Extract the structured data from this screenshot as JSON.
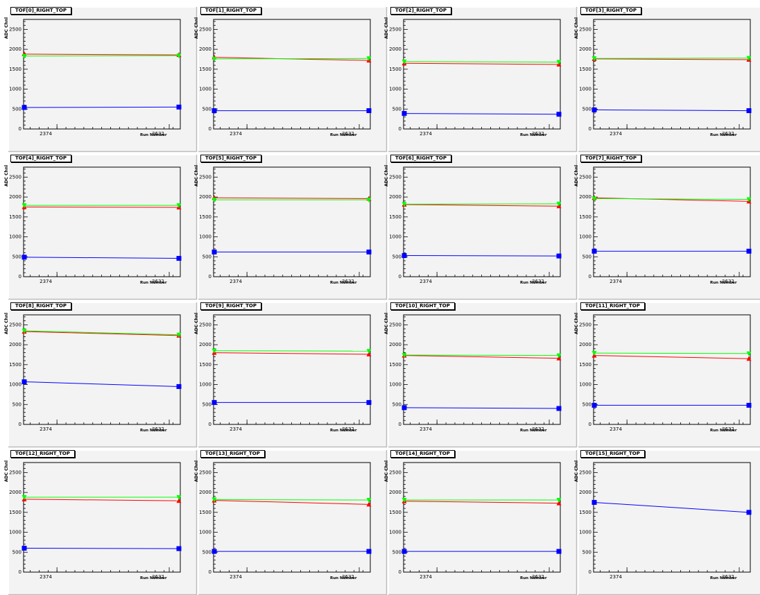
{
  "colors": {
    "pad_bg": "#f3f3f3",
    "frame": "#000000",
    "series_red": "#ff0000",
    "series_green": "#00ff00",
    "series_blue": "#0000ff"
  },
  "axis": {
    "x_ticks": [
      "2374",
      "3632"
    ],
    "y_ticks": [
      "0",
      "500",
      "1000",
      "1500",
      "2000",
      "2500"
    ],
    "xlabel": "Run Number",
    "ylabel": "ADC Chnl"
  },
  "chart_data": [
    {
      "type": "line",
      "title": "TOF[0]_RIGHT_TOP",
      "x": [
        2374,
        3632
      ],
      "ylim": [
        0,
        2750
      ],
      "series": [
        {
          "color": "#ff0000",
          "marker": "triangle-up",
          "values": [
            1880,
            1860
          ]
        },
        {
          "color": "#00ff00",
          "marker": "triangle-down",
          "values": [
            1830,
            1840
          ]
        },
        {
          "color": "#0000ff",
          "marker": "square",
          "values": [
            540,
            550
          ]
        }
      ]
    },
    {
      "type": "line",
      "title": "TOF[1]_RIGHT_TOP",
      "x": [
        2374,
        3632
      ],
      "ylim": [
        0,
        2750
      ],
      "series": [
        {
          "color": "#ff0000",
          "marker": "triangle-up",
          "values": [
            1800,
            1720
          ]
        },
        {
          "color": "#00ff00",
          "marker": "triangle-down",
          "values": [
            1760,
            1770
          ]
        },
        {
          "color": "#0000ff",
          "marker": "square",
          "values": [
            460,
            460
          ]
        }
      ]
    },
    {
      "type": "line",
      "title": "TOF[2]_RIGHT_TOP",
      "x": [
        2374,
        3632
      ],
      "ylim": [
        0,
        2750
      ],
      "series": [
        {
          "color": "#ff0000",
          "marker": "triangle-up",
          "values": [
            1650,
            1620
          ]
        },
        {
          "color": "#00ff00",
          "marker": "triangle-down",
          "values": [
            1690,
            1680
          ]
        },
        {
          "color": "#0000ff",
          "marker": "square",
          "values": [
            390,
            370
          ]
        }
      ]
    },
    {
      "type": "line",
      "title": "TOF[3]_RIGHT_TOP",
      "x": [
        2374,
        3632
      ],
      "ylim": [
        0,
        2750
      ],
      "series": [
        {
          "color": "#ff0000",
          "marker": "triangle-up",
          "values": [
            1760,
            1740
          ]
        },
        {
          "color": "#00ff00",
          "marker": "triangle-down",
          "values": [
            1770,
            1780
          ]
        },
        {
          "color": "#0000ff",
          "marker": "square",
          "values": [
            480,
            460
          ]
        }
      ]
    },
    {
      "type": "line",
      "title": "TOF[4]_RIGHT_TOP",
      "x": [
        2374,
        3632
      ],
      "ylim": [
        0,
        2750
      ],
      "series": [
        {
          "color": "#ff0000",
          "marker": "triangle-up",
          "values": [
            1750,
            1740
          ]
        },
        {
          "color": "#00ff00",
          "marker": "triangle-down",
          "values": [
            1790,
            1790
          ]
        },
        {
          "color": "#0000ff",
          "marker": "square",
          "values": [
            490,
            460
          ]
        }
      ]
    },
    {
      "type": "line",
      "title": "TOF[5]_RIGHT_TOP",
      "x": [
        2374,
        3632
      ],
      "ylim": [
        0,
        2750
      ],
      "series": [
        {
          "color": "#ff0000",
          "marker": "triangle-up",
          "values": [
            1980,
            1960
          ]
        },
        {
          "color": "#00ff00",
          "marker": "triangle-down",
          "values": [
            1930,
            1930
          ]
        },
        {
          "color": "#0000ff",
          "marker": "square",
          "values": [
            620,
            620
          ]
        }
      ]
    },
    {
      "type": "line",
      "title": "TOF[6]_RIGHT_TOP",
      "x": [
        2374,
        3632
      ],
      "ylim": [
        0,
        2750
      ],
      "series": [
        {
          "color": "#ff0000",
          "marker": "triangle-up",
          "values": [
            1810,
            1770
          ]
        },
        {
          "color": "#00ff00",
          "marker": "triangle-down",
          "values": [
            1820,
            1830
          ]
        },
        {
          "color": "#0000ff",
          "marker": "square",
          "values": [
            530,
            520
          ]
        }
      ]
    },
    {
      "type": "line",
      "title": "TOF[7]_RIGHT_TOP",
      "x": [
        2374,
        3632
      ],
      "ylim": [
        0,
        2750
      ],
      "series": [
        {
          "color": "#ff0000",
          "marker": "triangle-up",
          "values": [
            1980,
            1890
          ]
        },
        {
          "color": "#00ff00",
          "marker": "triangle-down",
          "values": [
            1960,
            1940
          ]
        },
        {
          "color": "#0000ff",
          "marker": "square",
          "values": [
            640,
            640
          ]
        }
      ]
    },
    {
      "type": "line",
      "title": "TOF[8]_RIGHT_TOP",
      "x": [
        2374,
        3632
      ],
      "ylim": [
        0,
        2750
      ],
      "series": [
        {
          "color": "#ff0000",
          "marker": "triangle-up",
          "values": [
            2330,
            2230
          ]
        },
        {
          "color": "#00ff00",
          "marker": "triangle-down",
          "values": [
            2350,
            2250
          ]
        },
        {
          "color": "#0000ff",
          "marker": "square",
          "values": [
            1070,
            950
          ]
        }
      ]
    },
    {
      "type": "line",
      "title": "TOF[9]_RIGHT_TOP",
      "x": [
        2374,
        3632
      ],
      "ylim": [
        0,
        2750
      ],
      "series": [
        {
          "color": "#ff0000",
          "marker": "triangle-up",
          "values": [
            1800,
            1760
          ]
        },
        {
          "color": "#00ff00",
          "marker": "triangle-down",
          "values": [
            1850,
            1840
          ]
        },
        {
          "color": "#0000ff",
          "marker": "square",
          "values": [
            550,
            550
          ]
        }
      ]
    },
    {
      "type": "line",
      "title": "TOF[10]_RIGHT_TOP",
      "x": [
        2374,
        3632
      ],
      "ylim": [
        0,
        2750
      ],
      "series": [
        {
          "color": "#ff0000",
          "marker": "triangle-up",
          "values": [
            1730,
            1660
          ]
        },
        {
          "color": "#00ff00",
          "marker": "triangle-down",
          "values": [
            1740,
            1730
          ]
        },
        {
          "color": "#0000ff",
          "marker": "square",
          "values": [
            420,
            400
          ]
        }
      ]
    },
    {
      "type": "line",
      "title": "TOF[11]_RIGHT_TOP",
      "x": [
        2374,
        3632
      ],
      "ylim": [
        0,
        2750
      ],
      "series": [
        {
          "color": "#ff0000",
          "marker": "triangle-up",
          "values": [
            1730,
            1650
          ]
        },
        {
          "color": "#00ff00",
          "marker": "triangle-down",
          "values": [
            1790,
            1780
          ]
        },
        {
          "color": "#0000ff",
          "marker": "square",
          "values": [
            480,
            480
          ]
        }
      ]
    },
    {
      "type": "line",
      "title": "TOF[12]_RIGHT_TOP",
      "x": [
        2374,
        3632
      ],
      "ylim": [
        0,
        2750
      ],
      "series": [
        {
          "color": "#ff0000",
          "marker": "triangle-up",
          "values": [
            1830,
            1790
          ]
        },
        {
          "color": "#00ff00",
          "marker": "triangle-down",
          "values": [
            1880,
            1880
          ]
        },
        {
          "color": "#0000ff",
          "marker": "square",
          "values": [
            600,
            590
          ]
        }
      ]
    },
    {
      "type": "line",
      "title": "TOF[13]_RIGHT_TOP",
      "x": [
        2374,
        3632
      ],
      "ylim": [
        0,
        2750
      ],
      "series": [
        {
          "color": "#ff0000",
          "marker": "triangle-up",
          "values": [
            1800,
            1700
          ]
        },
        {
          "color": "#00ff00",
          "marker": "triangle-down",
          "values": [
            1820,
            1810
          ]
        },
        {
          "color": "#0000ff",
          "marker": "square",
          "values": [
            520,
            520
          ]
        }
      ]
    },
    {
      "type": "line",
      "title": "TOF[14]_RIGHT_TOP",
      "x": [
        2374,
        3632
      ],
      "ylim": [
        0,
        2750
      ],
      "series": [
        {
          "color": "#ff0000",
          "marker": "triangle-up",
          "values": [
            1780,
            1730
          ]
        },
        {
          "color": "#00ff00",
          "marker": "triangle-down",
          "values": [
            1810,
            1810
          ]
        },
        {
          "color": "#0000ff",
          "marker": "square",
          "values": [
            520,
            520
          ]
        }
      ]
    },
    {
      "type": "line",
      "title": "TOF[15]_RIGHT_TOP",
      "x": [
        2374,
        3632
      ],
      "ylim": [
        0,
        2750
      ],
      "series": [
        {
          "color": "#0000ff",
          "marker": "square",
          "values": [
            1750,
            1500
          ]
        }
      ]
    }
  ]
}
